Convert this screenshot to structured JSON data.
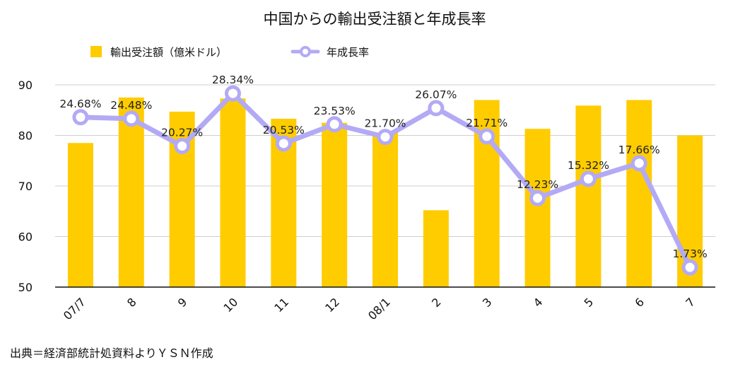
{
  "chart_data": {
    "type": "bar",
    "title": "中国からの輸出受注額と年成長率",
    "categories": [
      "07/7",
      "8",
      "9",
      "10",
      "11",
      "12",
      "08/1",
      "2",
      "3",
      "4",
      "5",
      "6",
      "7"
    ],
    "series": [
      {
        "name": "輸出受注額（億米ドル）",
        "type": "bar",
        "color": "#FFCC00",
        "values": [
          78.5,
          87.5,
          84.7,
          87.3,
          83.3,
          82.5,
          80.5,
          65.2,
          87.0,
          81.3,
          85.9,
          87.0,
          80.0
        ]
      },
      {
        "name": "年成長率",
        "type": "line",
        "color": "#B3AAF5",
        "axis_values": [
          83.6,
          83.3,
          77.9,
          88.3,
          78.4,
          82.2,
          79.7,
          85.4,
          79.8,
          67.6,
          71.4,
          74.5,
          53.9
        ],
        "labels": [
          "24.68%",
          "24.48%",
          "20.27%",
          "28.34%",
          "20.53%",
          "23.53%",
          "21.70%",
          "26.07%",
          "21.71%",
          "12.23%",
          "15.32%",
          "17.66%",
          "1.73%"
        ]
      }
    ],
    "ylim": [
      50,
      90
    ],
    "yticks": [
      "50",
      "60",
      "70",
      "80",
      "90"
    ],
    "grid": true,
    "legend": "top"
  },
  "source": "出典＝経済部統計処資料よりＹＳＮ作成"
}
